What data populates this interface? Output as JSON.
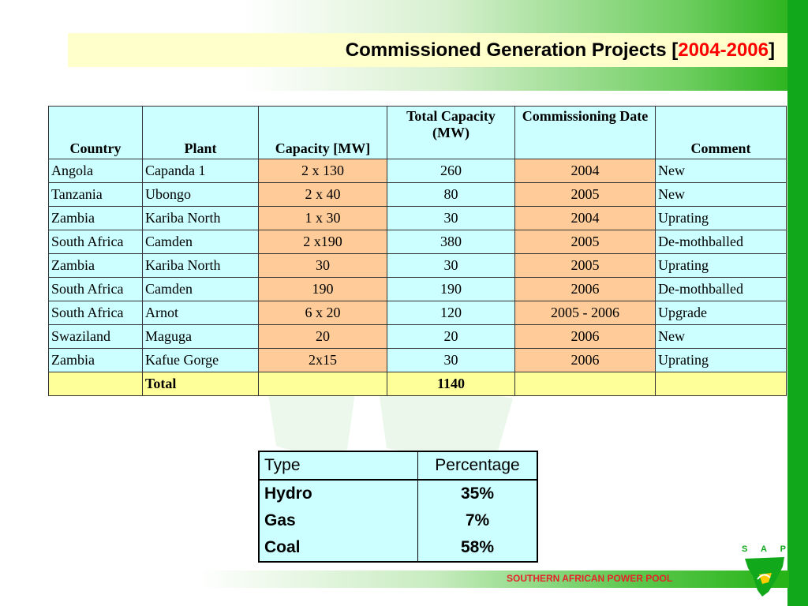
{
  "header": {
    "title_main": "Commissioned Generation Projects [",
    "title_years": "2004-2006",
    "title_close": "]"
  },
  "table": {
    "headers": [
      "Country",
      "Plant",
      "Capacity [MW]",
      "Total Capacity (MW)",
      "Commissioning Date",
      "Comment"
    ],
    "rows": [
      [
        "Angola",
        "Capanda 1",
        "2 x 130",
        "260",
        "2004",
        "New"
      ],
      [
        "Tanzania",
        "Ubongo",
        "2 x 40",
        "80",
        "2005",
        "New"
      ],
      [
        "Zambia",
        "Kariba North",
        "1 x 30",
        "30",
        "2004",
        "Uprating"
      ],
      [
        "South Africa",
        "Camden",
        "2 x190",
        "380",
        "2005",
        "De-mothballed"
      ],
      [
        "Zambia",
        "Kariba North",
        "30",
        "30",
        "2005",
        "Uprating"
      ],
      [
        "South Africa",
        "Camden",
        "190",
        "190",
        "2006",
        "De-mothballed"
      ],
      [
        "South Africa",
        "Arnot",
        "6 x 20",
        "120",
        "2005 - 2006",
        "Upgrade"
      ],
      [
        "Swaziland",
        "Maguga",
        "20",
        "20",
        "2006",
        "New"
      ],
      [
        "Zambia",
        "Kafue Gorge",
        "2x15",
        "30",
        "2006",
        "Uprating"
      ]
    ],
    "total_label": "Total",
    "total_value": "1140"
  },
  "share_table": {
    "headers": [
      "Type",
      "Percentage"
    ],
    "rows": [
      [
        "Hydro",
        "35%"
      ],
      [
        "Gas",
        "7%"
      ],
      [
        "Coal",
        "58%"
      ]
    ]
  },
  "footer": {
    "organization": "SOUTHERN AFRICAN POWER POOL",
    "logo_letters": "S A P P"
  },
  "colors": {
    "accent_green": "#11a81b",
    "title_year_red": "#ff0000",
    "cell_cyan": "#ccffff",
    "cell_peach": "#ffcc99",
    "cell_yellow": "#ffff99",
    "footer_red": "#e6232a"
  }
}
